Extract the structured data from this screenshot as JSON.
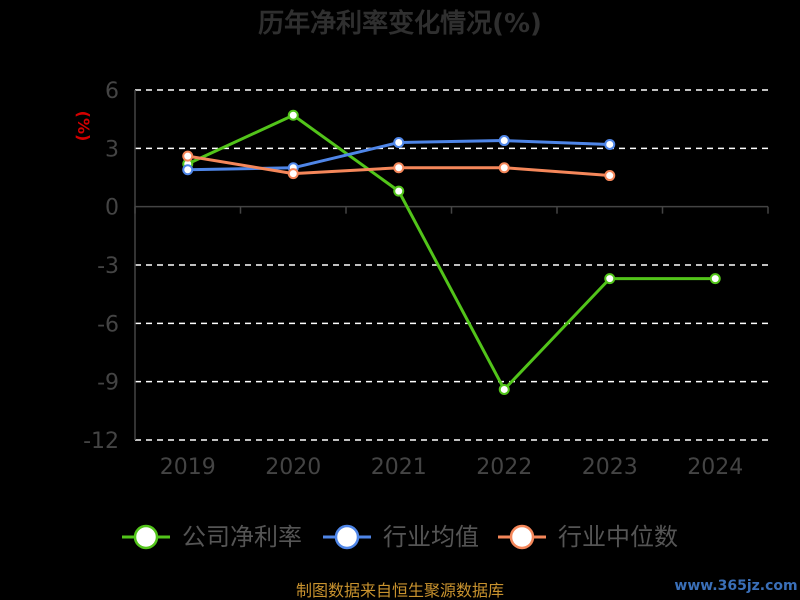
{
  "chart_data": {
    "type": "line",
    "title": "历年净利率变化情况(%)",
    "ylabel": "(%)",
    "categories": [
      "2019",
      "2020",
      "2021",
      "2022",
      "2023",
      "2024"
    ],
    "ylim": [
      -12,
      6
    ],
    "yticks": [
      6,
      3,
      0,
      -3,
      -6,
      -9,
      -12
    ],
    "ytick_labels": [
      "6",
      "3",
      "0",
      "-3",
      "-6",
      "-9",
      "-12"
    ],
    "grid": true,
    "legend_position": "bottom",
    "series": [
      {
        "name": "公司净利率",
        "color": "#52c41a",
        "values": [
          2.2,
          4.7,
          0.8,
          -9.4,
          -3.7,
          -3.7
        ]
      },
      {
        "name": "行业均值",
        "color": "#4f86e8",
        "values": [
          1.9,
          2.0,
          3.3,
          3.4,
          3.2,
          null
        ]
      },
      {
        "name": "行业中位数",
        "color": "#f5875a",
        "values": [
          2.6,
          1.7,
          2.0,
          2.0,
          1.6,
          null
        ]
      }
    ]
  },
  "source_text": "制图数据来自恒生聚源数据库",
  "watermark_text": "www.365jz.com"
}
